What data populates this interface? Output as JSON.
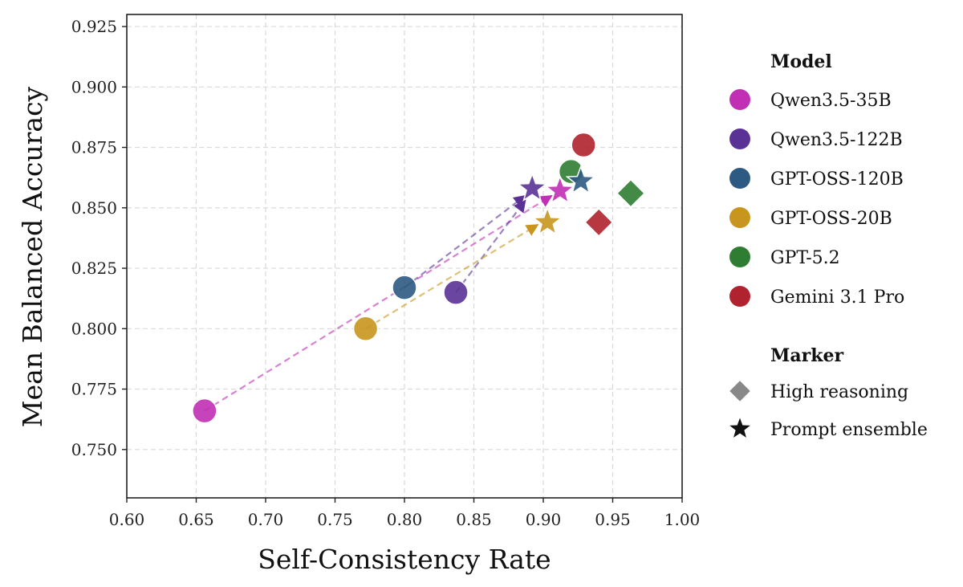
{
  "chart_data": {
    "type": "scatter",
    "title": "",
    "xlabel": "Self-Consistency Rate",
    "ylabel": "Mean Balanced Accuracy",
    "xlim": [
      0.6,
      1.0
    ],
    "ylim": [
      0.73,
      0.93
    ],
    "xticks": [
      "0.60",
      "0.65",
      "0.70",
      "0.75",
      "0.80",
      "0.85",
      "0.90",
      "0.95",
      "1.00"
    ],
    "yticks": [
      "0.750",
      "0.775",
      "0.800",
      "0.825",
      "0.850",
      "0.875",
      "0.900",
      "0.925"
    ],
    "grid": true,
    "legend_placement": "right",
    "legend": {
      "model_title": "Model",
      "marker_title": "Marker",
      "markers": [
        {
          "label": "High reasoning",
          "marker": "diamond"
        },
        {
          "label": "Prompt ensemble",
          "marker": "star"
        }
      ]
    },
    "series": [
      {
        "name": "Qwen3.5-35B",
        "color": "#C02FB4",
        "points": [
          {
            "marker": "circle",
            "x": 0.656,
            "y": 0.766
          },
          {
            "marker": "star",
            "x": 0.912,
            "y": 0.857
          }
        ]
      },
      {
        "name": "Qwen3.5-122B",
        "color": "#5A3296",
        "points": [
          {
            "marker": "circle",
            "x": 0.837,
            "y": 0.815
          },
          {
            "marker": "star",
            "x": 0.892,
            "y": 0.858
          }
        ]
      },
      {
        "name": "GPT-OSS-120B",
        "color": "#2C5A82",
        "points": [
          {
            "marker": "circle",
            "x": 0.8,
            "y": 0.817
          },
          {
            "marker": "star",
            "x": 0.927,
            "y": 0.861
          }
        ]
      },
      {
        "name": "GPT-OSS-20B",
        "color": "#C8961E",
        "points": [
          {
            "marker": "circle",
            "x": 0.772,
            "y": 0.8
          },
          {
            "marker": "star",
            "x": 0.903,
            "y": 0.844
          }
        ]
      },
      {
        "name": "GPT-5.2",
        "color": "#2E7D32",
        "points": [
          {
            "marker": "circle",
            "x": 0.92,
            "y": 0.865
          },
          {
            "marker": "diamond",
            "x": 0.963,
            "y": 0.856
          }
        ]
      },
      {
        "name": "Gemini 3.1 Pro",
        "color": "#B0222E",
        "points": [
          {
            "marker": "circle",
            "x": 0.929,
            "y": 0.876
          },
          {
            "marker": "diamond",
            "x": 0.94,
            "y": 0.844
          }
        ]
      }
    ],
    "arrows": [
      {
        "series": "Qwen3.5-35B",
        "from": [
          0.656,
          0.766
        ],
        "to": [
          0.906,
          0.855
        ]
      },
      {
        "series": "Qwen3.5-122B",
        "from": [
          0.837,
          0.815
        ],
        "to": [
          0.887,
          0.853
        ]
      },
      {
        "series": "Qwen3.5-122B",
        "from": [
          0.8,
          0.817
        ],
        "to": [
          0.887,
          0.855
        ]
      },
      {
        "series": "GPT-OSS-20B",
        "from": [
          0.772,
          0.8
        ],
        "to": [
          0.896,
          0.843
        ]
      }
    ]
  }
}
